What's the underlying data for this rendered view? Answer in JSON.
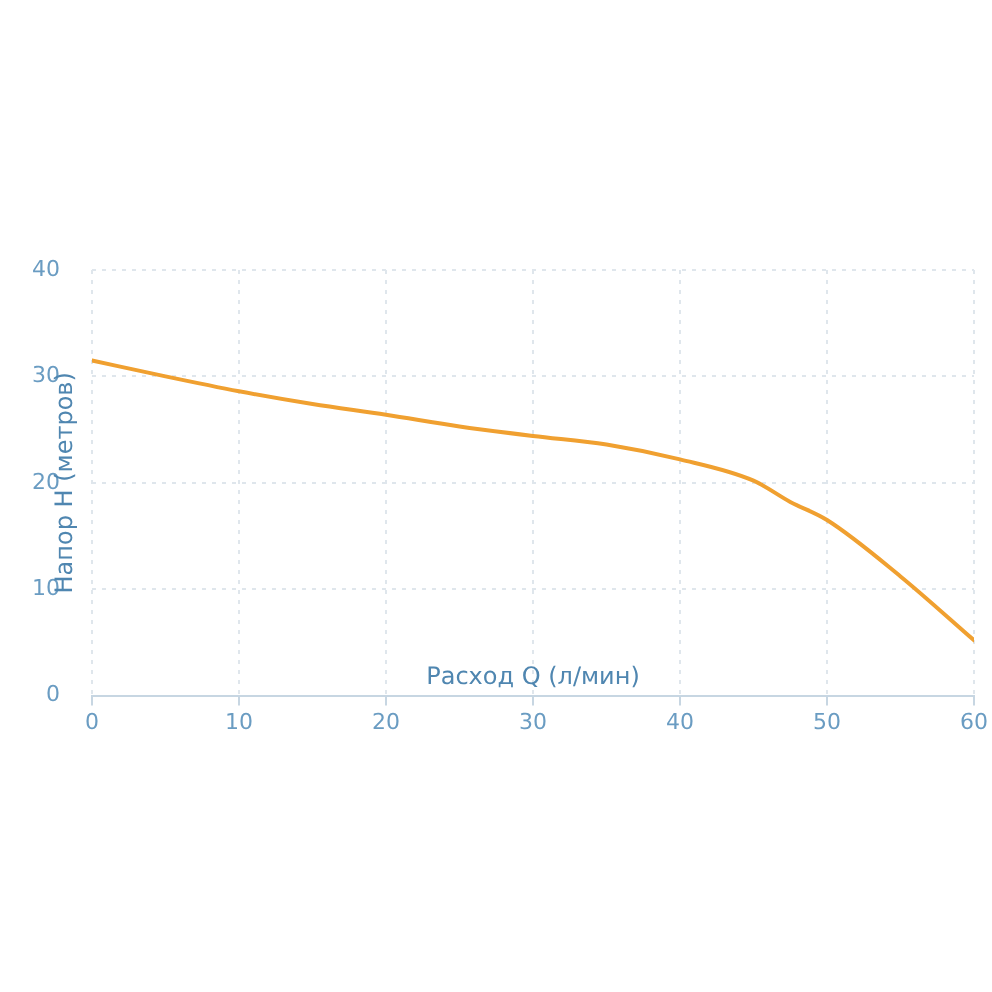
{
  "chart_data": {
    "type": "line",
    "xlabel": "Расход Q (л/мин)",
    "ylabel": "Напор Н (метров)",
    "x": [
      0,
      5,
      10,
      15,
      20,
      25,
      30,
      35,
      40,
      45,
      47.5,
      50,
      55,
      60
    ],
    "series": [
      {
        "color": "#f0a030",
        "values": [
          31.5,
          30.0,
          28.6,
          27.4,
          26.4,
          25.3,
          24.4,
          23.6,
          22.2,
          20.2,
          18.2,
          16.5,
          11.2,
          5.2
        ]
      }
    ],
    "xlim": [
      0,
      60
    ],
    "xticks": [
      0,
      10,
      20,
      30,
      40,
      50,
      60
    ],
    "ylim": [
      0,
      40
    ],
    "yticks": [
      0,
      10,
      20,
      30,
      40
    ],
    "grid": true,
    "marker": "none",
    "line_style": "solid"
  }
}
